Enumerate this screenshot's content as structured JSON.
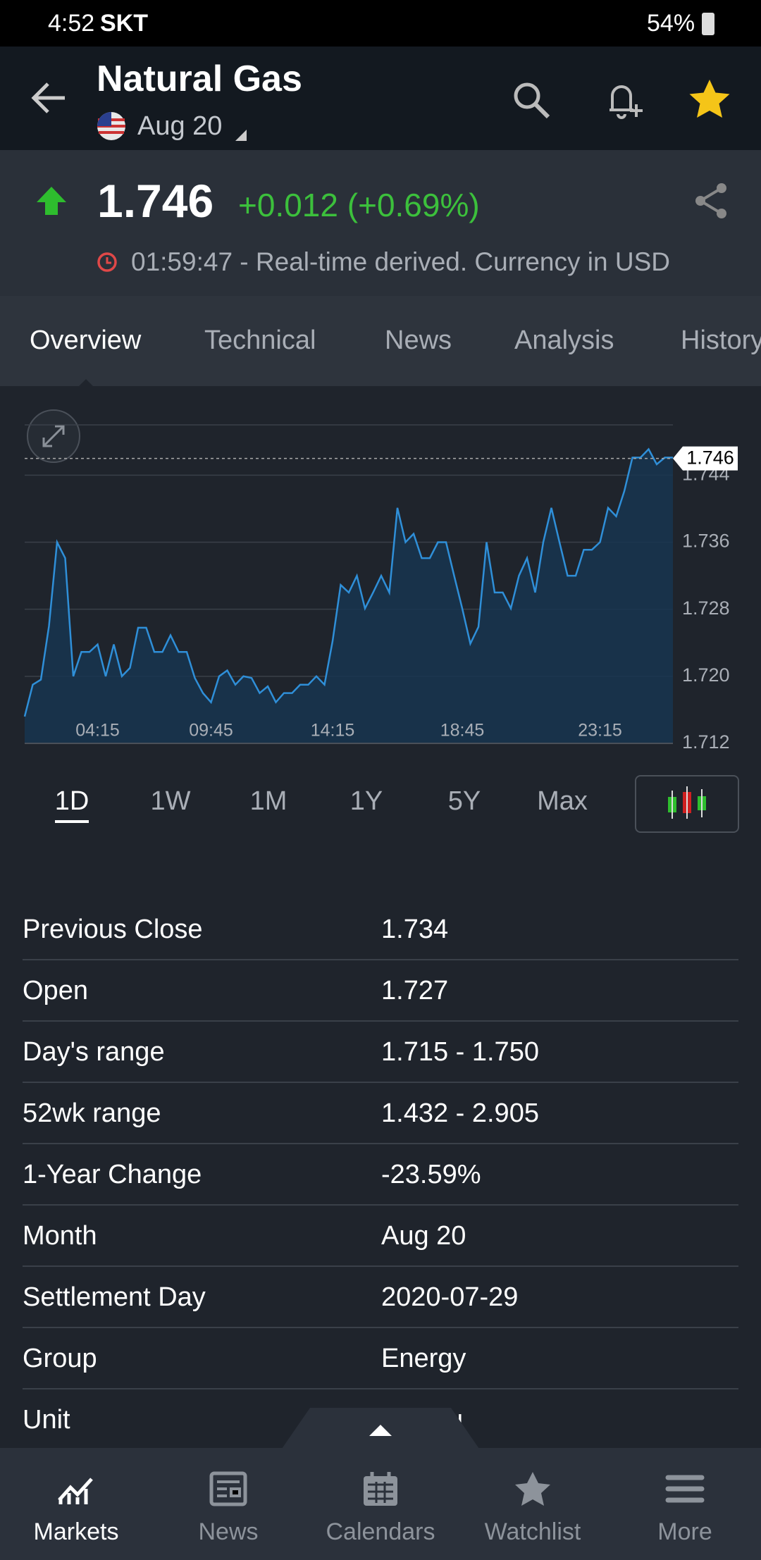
{
  "status_bar": {
    "time": "4:52",
    "carrier": "SKT",
    "battery": "54%"
  },
  "header": {
    "title": "Natural Gas",
    "contract": "Aug 20"
  },
  "quote": {
    "price": "1.746",
    "change": "+0.012 (+0.69%)",
    "time_note": "01:59:47 - Real-time derived. Currency in USD"
  },
  "tabs": [
    "Overview",
    "Technical",
    "News",
    "Analysis",
    "History"
  ],
  "chart_data": {
    "type": "line",
    "color": "#2f8fd8",
    "categories": [
      null,
      null,
      null,
      null,
      null,
      null,
      null,
      null,
      null,
      "04:15",
      null,
      null,
      null,
      null,
      null,
      null,
      null,
      null,
      null,
      null,
      null,
      null,
      null,
      "09:45",
      null,
      null,
      null,
      null,
      null,
      null,
      null,
      null,
      null,
      null,
      null,
      null,
      null,
      null,
      "14:15",
      null,
      null,
      null,
      null,
      null,
      null,
      null,
      null,
      null,
      null,
      null,
      null,
      null,
      null,
      null,
      "18:45",
      null,
      null,
      null,
      null,
      null,
      null,
      null,
      null,
      null,
      null,
      null,
      null,
      null,
      null,
      null,
      null,
      "23:15",
      null,
      null,
      null,
      null,
      null,
      null,
      null,
      null,
      null
    ],
    "values": [
      1.7152,
      1.719,
      1.7196,
      1.726,
      1.736,
      1.7341,
      1.72,
      1.7229,
      1.7229,
      1.7238,
      1.72,
      1.7238,
      1.72,
      1.721,
      1.7258,
      1.7258,
      1.7229,
      1.7229,
      1.7249,
      1.7229,
      1.7229,
      1.7198,
      1.718,
      1.7169,
      1.72,
      1.7207,
      1.719,
      1.72,
      1.7198,
      1.718,
      1.7188,
      1.7169,
      1.718,
      1.718,
      1.719,
      1.719,
      1.72,
      1.719,
      1.7242,
      1.7309,
      1.73,
      1.732,
      1.7281,
      1.73,
      1.732,
      1.73,
      1.7401,
      1.736,
      1.737,
      1.7341,
      1.7341,
      1.736,
      1.736,
      1.732,
      1.7281,
      1.7239,
      1.7259,
      1.736,
      1.73,
      1.73,
      1.7281,
      1.732,
      1.7341,
      1.73,
      1.736,
      1.7401,
      1.736,
      1.732,
      1.732,
      1.7351,
      1.7351,
      1.736,
      1.7401,
      1.7391,
      1.7421,
      1.7461,
      1.7461,
      1.7471,
      1.7453,
      1.7461,
      1.7461
    ],
    "ylim": [
      1.712,
      1.75
    ],
    "yticks": [
      1.712,
      {
        "value": 1.72,
        "label": "1.720"
      },
      1.728,
      1.736,
      1.744
    ],
    "current": 1.746,
    "grid": true
  },
  "ranges": [
    "1D",
    "1W",
    "1M",
    "1Y",
    "5Y",
    "Max"
  ],
  "table": {
    "rows": [
      [
        "Previous Close",
        "1.734"
      ],
      [
        "Open",
        "1.727"
      ],
      [
        "Day's range",
        "1.715 - 1.750"
      ],
      [
        "52wk range",
        "1.432 - 2.905"
      ],
      [
        "1-Year Change",
        "-23.59%"
      ],
      [
        "Month",
        "Aug 20"
      ],
      [
        "Settlement Day",
        "2020-07-29"
      ],
      [
        "Group",
        "Energy"
      ],
      [
        "Unit",
        "mmbtu"
      ]
    ]
  },
  "nav": [
    "Markets",
    "News",
    "Calendars",
    "Watchlist",
    "More"
  ]
}
